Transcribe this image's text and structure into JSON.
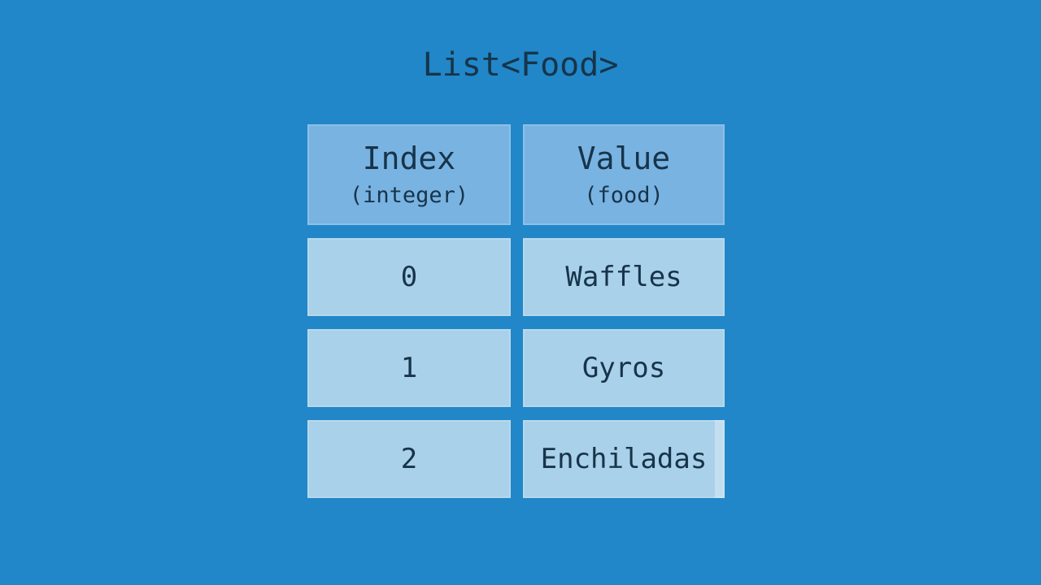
{
  "title": "List<Food>",
  "colors": {
    "bg": "#2187c8",
    "header-cell": "#79b3e2",
    "data-cell": "#a9d1e9",
    "text": "#17344a"
  },
  "table": {
    "columns": [
      {
        "label": "Index",
        "type": "(integer)"
      },
      {
        "label": "Value",
        "type": "(food)"
      }
    ],
    "rows": [
      {
        "index": "0",
        "value": "Waffles"
      },
      {
        "index": "1",
        "value": "Gyros"
      },
      {
        "index": "2",
        "value": "Enchiladas"
      }
    ]
  }
}
